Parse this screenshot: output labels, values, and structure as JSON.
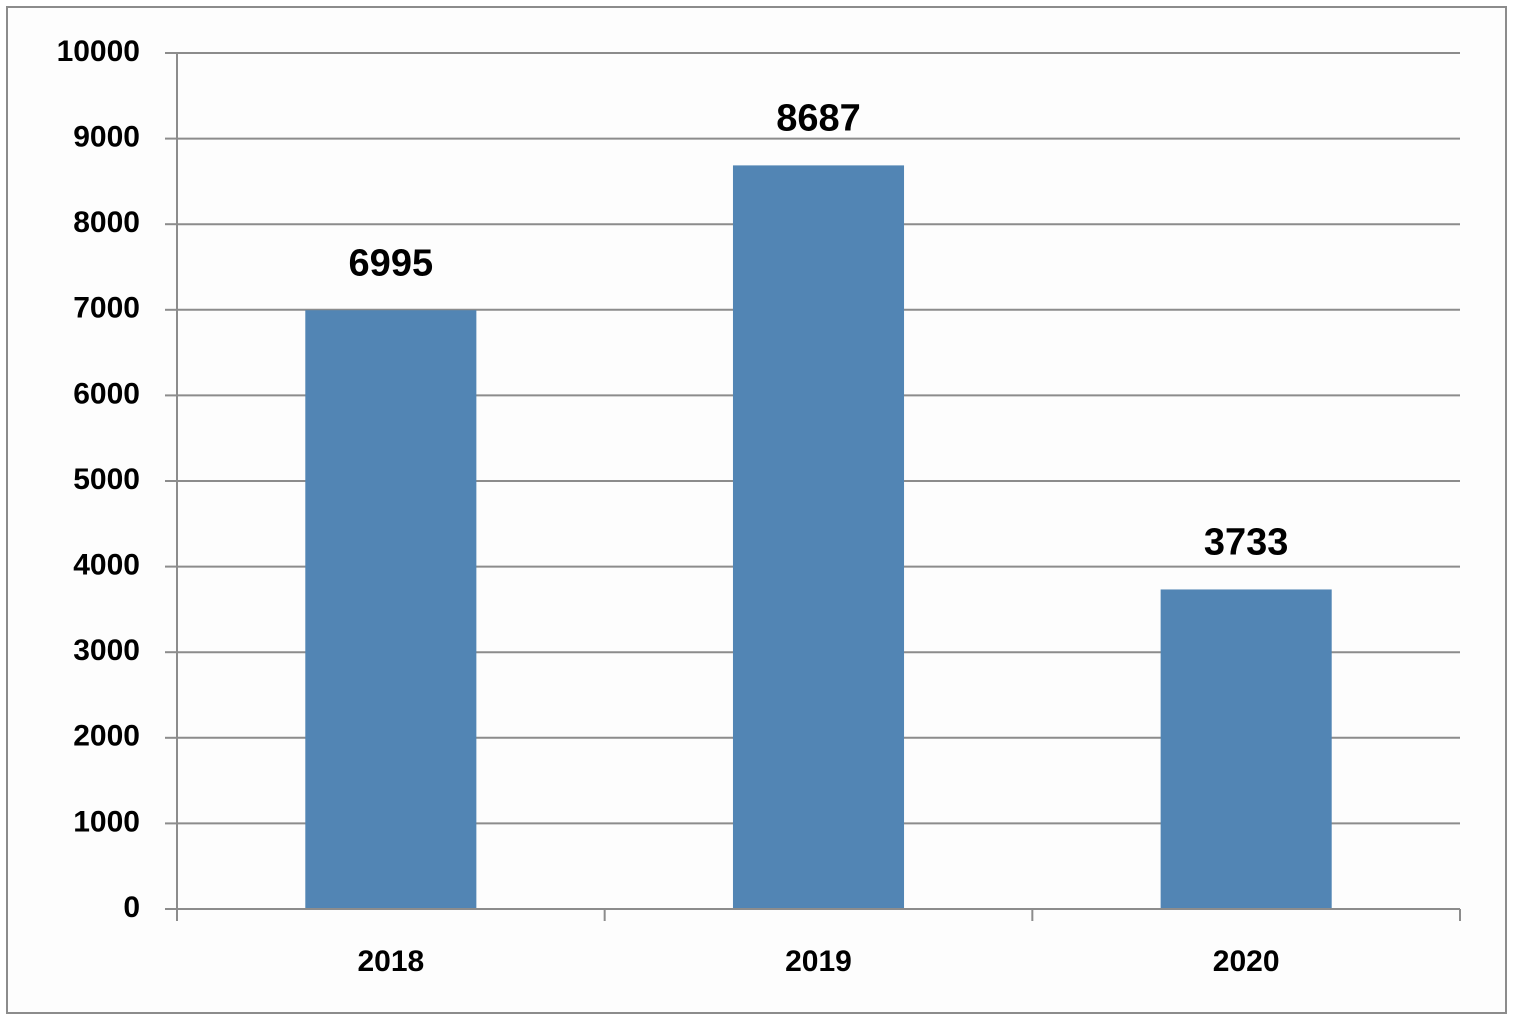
{
  "chart_data": {
    "type": "bar",
    "categories": [
      "2018",
      "2019",
      "2020"
    ],
    "values": [
      6995,
      8687,
      3733
    ],
    "color": "#5285b4",
    "ylim": [
      0,
      10000
    ],
    "yticks": [
      0,
      1000,
      2000,
      3000,
      4000,
      5000,
      6000,
      7000,
      8000,
      9000,
      10000
    ],
    "grid": true,
    "data_labels": true
  }
}
